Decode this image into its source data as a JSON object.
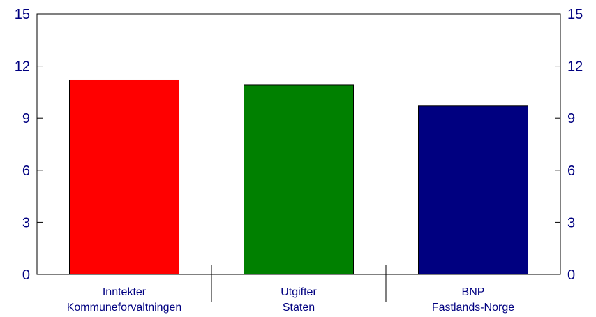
{
  "chart_data": {
    "type": "bar",
    "categories": [
      [
        "Inntekter",
        "Kommuneforvaltningen"
      ],
      [
        "Utgifter",
        "Staten"
      ],
      [
        "BNP",
        "Fastlands-Norge"
      ]
    ],
    "values": [
      11.2,
      10.9,
      9.7
    ],
    "colors": [
      "#ff0000",
      "#008000",
      "#000080"
    ],
    "ylim": [
      0,
      15
    ],
    "yticks": [
      0,
      3,
      6,
      9,
      12,
      15
    ],
    "ytick_labels": [
      "0",
      "3",
      "6",
      "9",
      "12",
      "15"
    ],
    "title": "",
    "xlabel": "",
    "ylabel": "",
    "grid": false,
    "legend": "none",
    "right_axis": true
  }
}
